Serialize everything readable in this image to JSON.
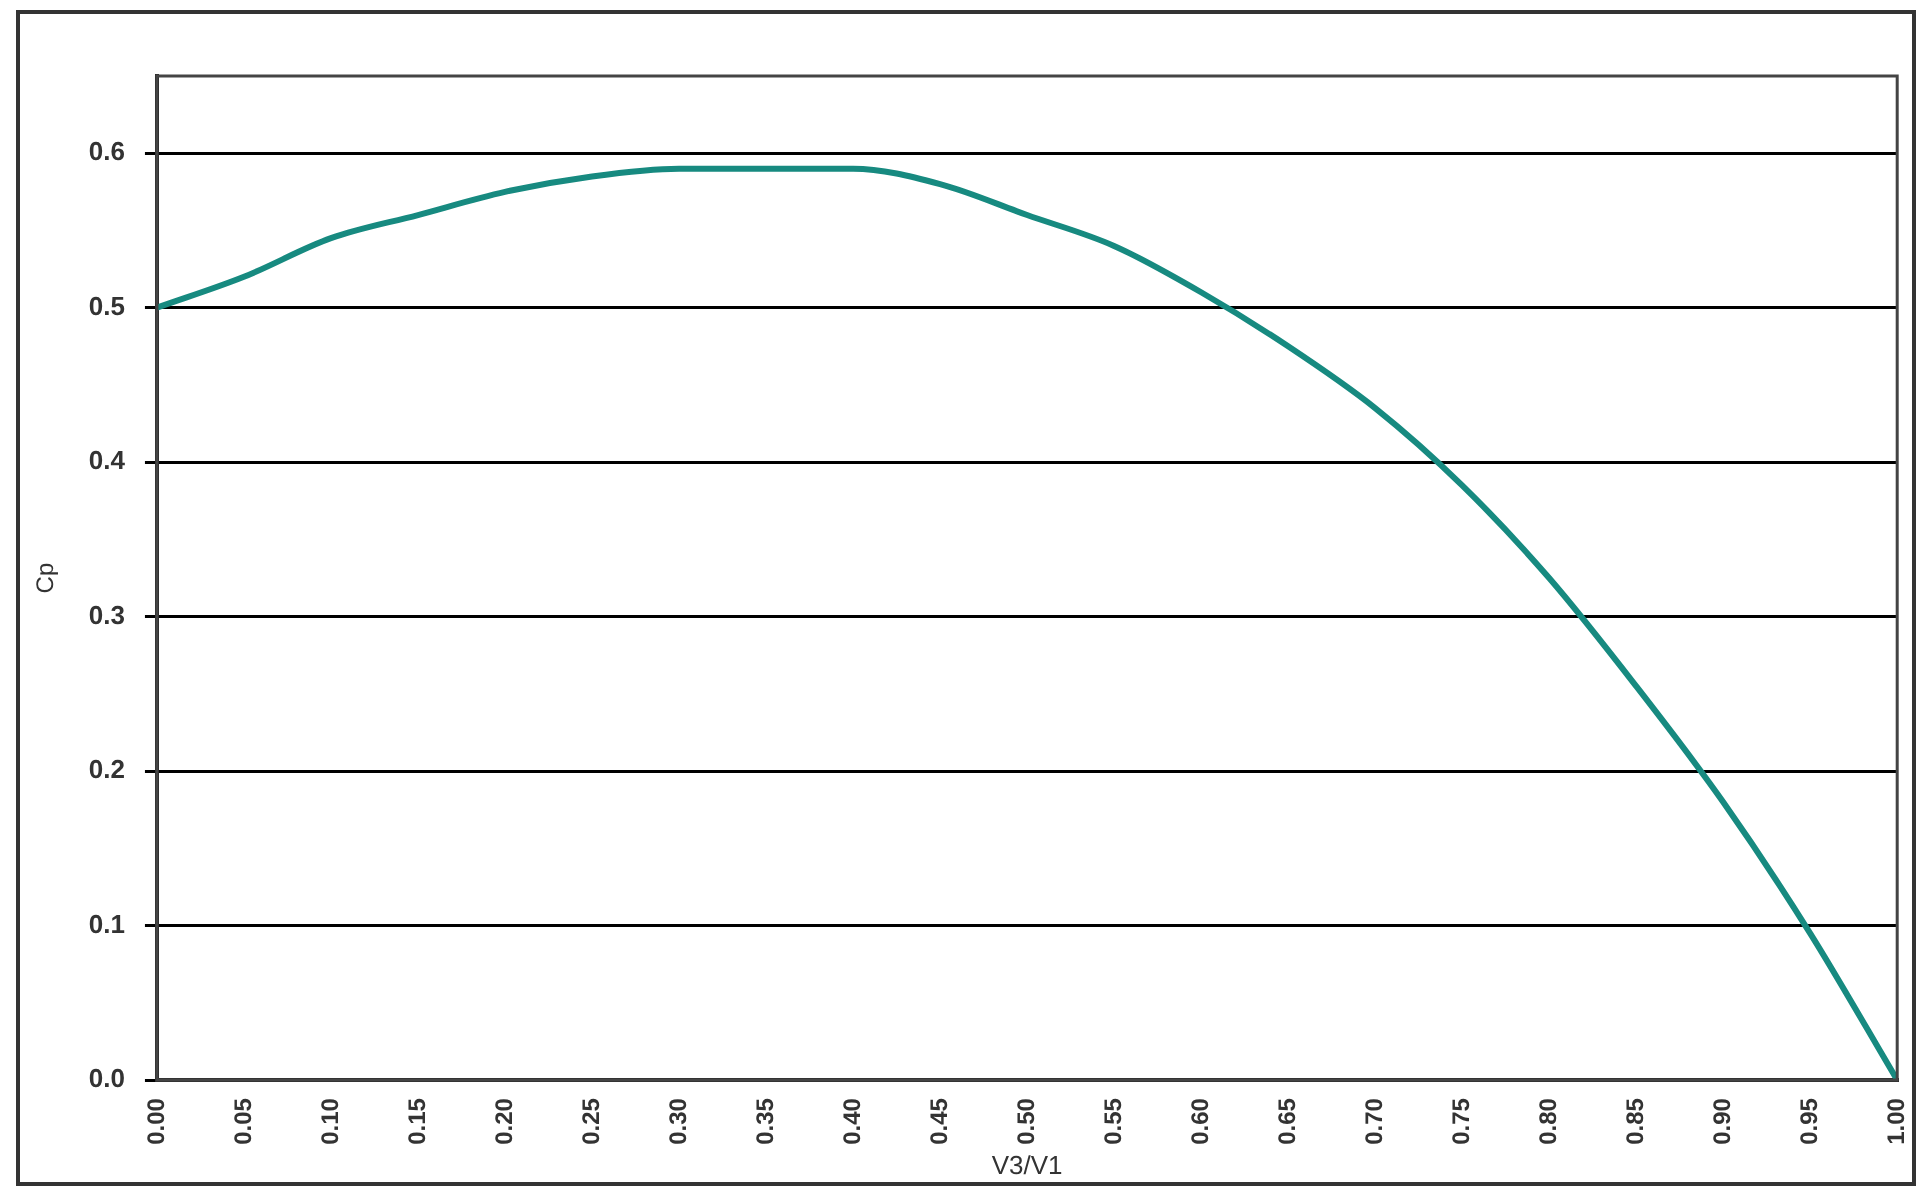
{
  "chart_data": {
    "type": "line",
    "xlabel": "V3/V1",
    "ylabel": "Cp",
    "x": [
      0,
      0.05,
      0.1,
      0.15,
      0.2,
      0.25,
      0.3,
      0.35,
      0.4,
      0.45,
      0.5,
      0.55,
      0.6,
      0.65,
      0.7,
      0.75,
      0.8,
      0.85,
      0.9,
      0.95,
      1
    ],
    "series": [
      {
        "color": "#178a80",
        "values": [
          0.5,
          0.52,
          0.545,
          0.56,
          0.575,
          0.585,
          0.59,
          0.59,
          0.59,
          0.58,
          0.56,
          0.54,
          0.51,
          0.475,
          0.435,
          0.385,
          0.325,
          0.255,
          0.18,
          0.095,
          0
        ]
      }
    ],
    "xlim": [
      0,
      1
    ],
    "xticks": [
      {
        "value": 0,
        "label": "0.00"
      },
      {
        "value": 0.05,
        "label": "0.05"
      },
      {
        "value": 0.1,
        "label": "0.10"
      },
      {
        "value": 0.15,
        "label": "0.15"
      },
      {
        "value": 0.2,
        "label": "0.20"
      },
      {
        "value": 0.25,
        "label": "0.25"
      },
      {
        "value": 0.3,
        "label": "0.30"
      },
      {
        "value": 0.35,
        "label": "0.35"
      },
      {
        "value": 0.4,
        "label": "0.40"
      },
      {
        "value": 0.45,
        "label": "0.45"
      },
      {
        "value": 0.5,
        "label": "0.50"
      },
      {
        "value": 0.55,
        "label": "0.55"
      },
      {
        "value": 0.6,
        "label": "0.60"
      },
      {
        "value": 0.65,
        "label": "0.65"
      },
      {
        "value": 0.7,
        "label": "0.70"
      },
      {
        "value": 0.75,
        "label": "0.75"
      },
      {
        "value": 0.8,
        "label": "0.80"
      },
      {
        "value": 0.85,
        "label": "0.85"
      },
      {
        "value": 0.9,
        "label": "0.90"
      },
      {
        "value": 0.95,
        "label": "0.95"
      },
      {
        "value": 1,
        "label": "1.00"
      }
    ],
    "ylim": [
      0,
      0.65
    ],
    "yticks": [
      {
        "value": 0,
        "label": "0.0"
      },
      0.1,
      0.2,
      0.3,
      0.4,
      0.5,
      0.6
    ],
    "grid": "y",
    "legend": false,
    "marker": "none",
    "line_style": "solid"
  }
}
